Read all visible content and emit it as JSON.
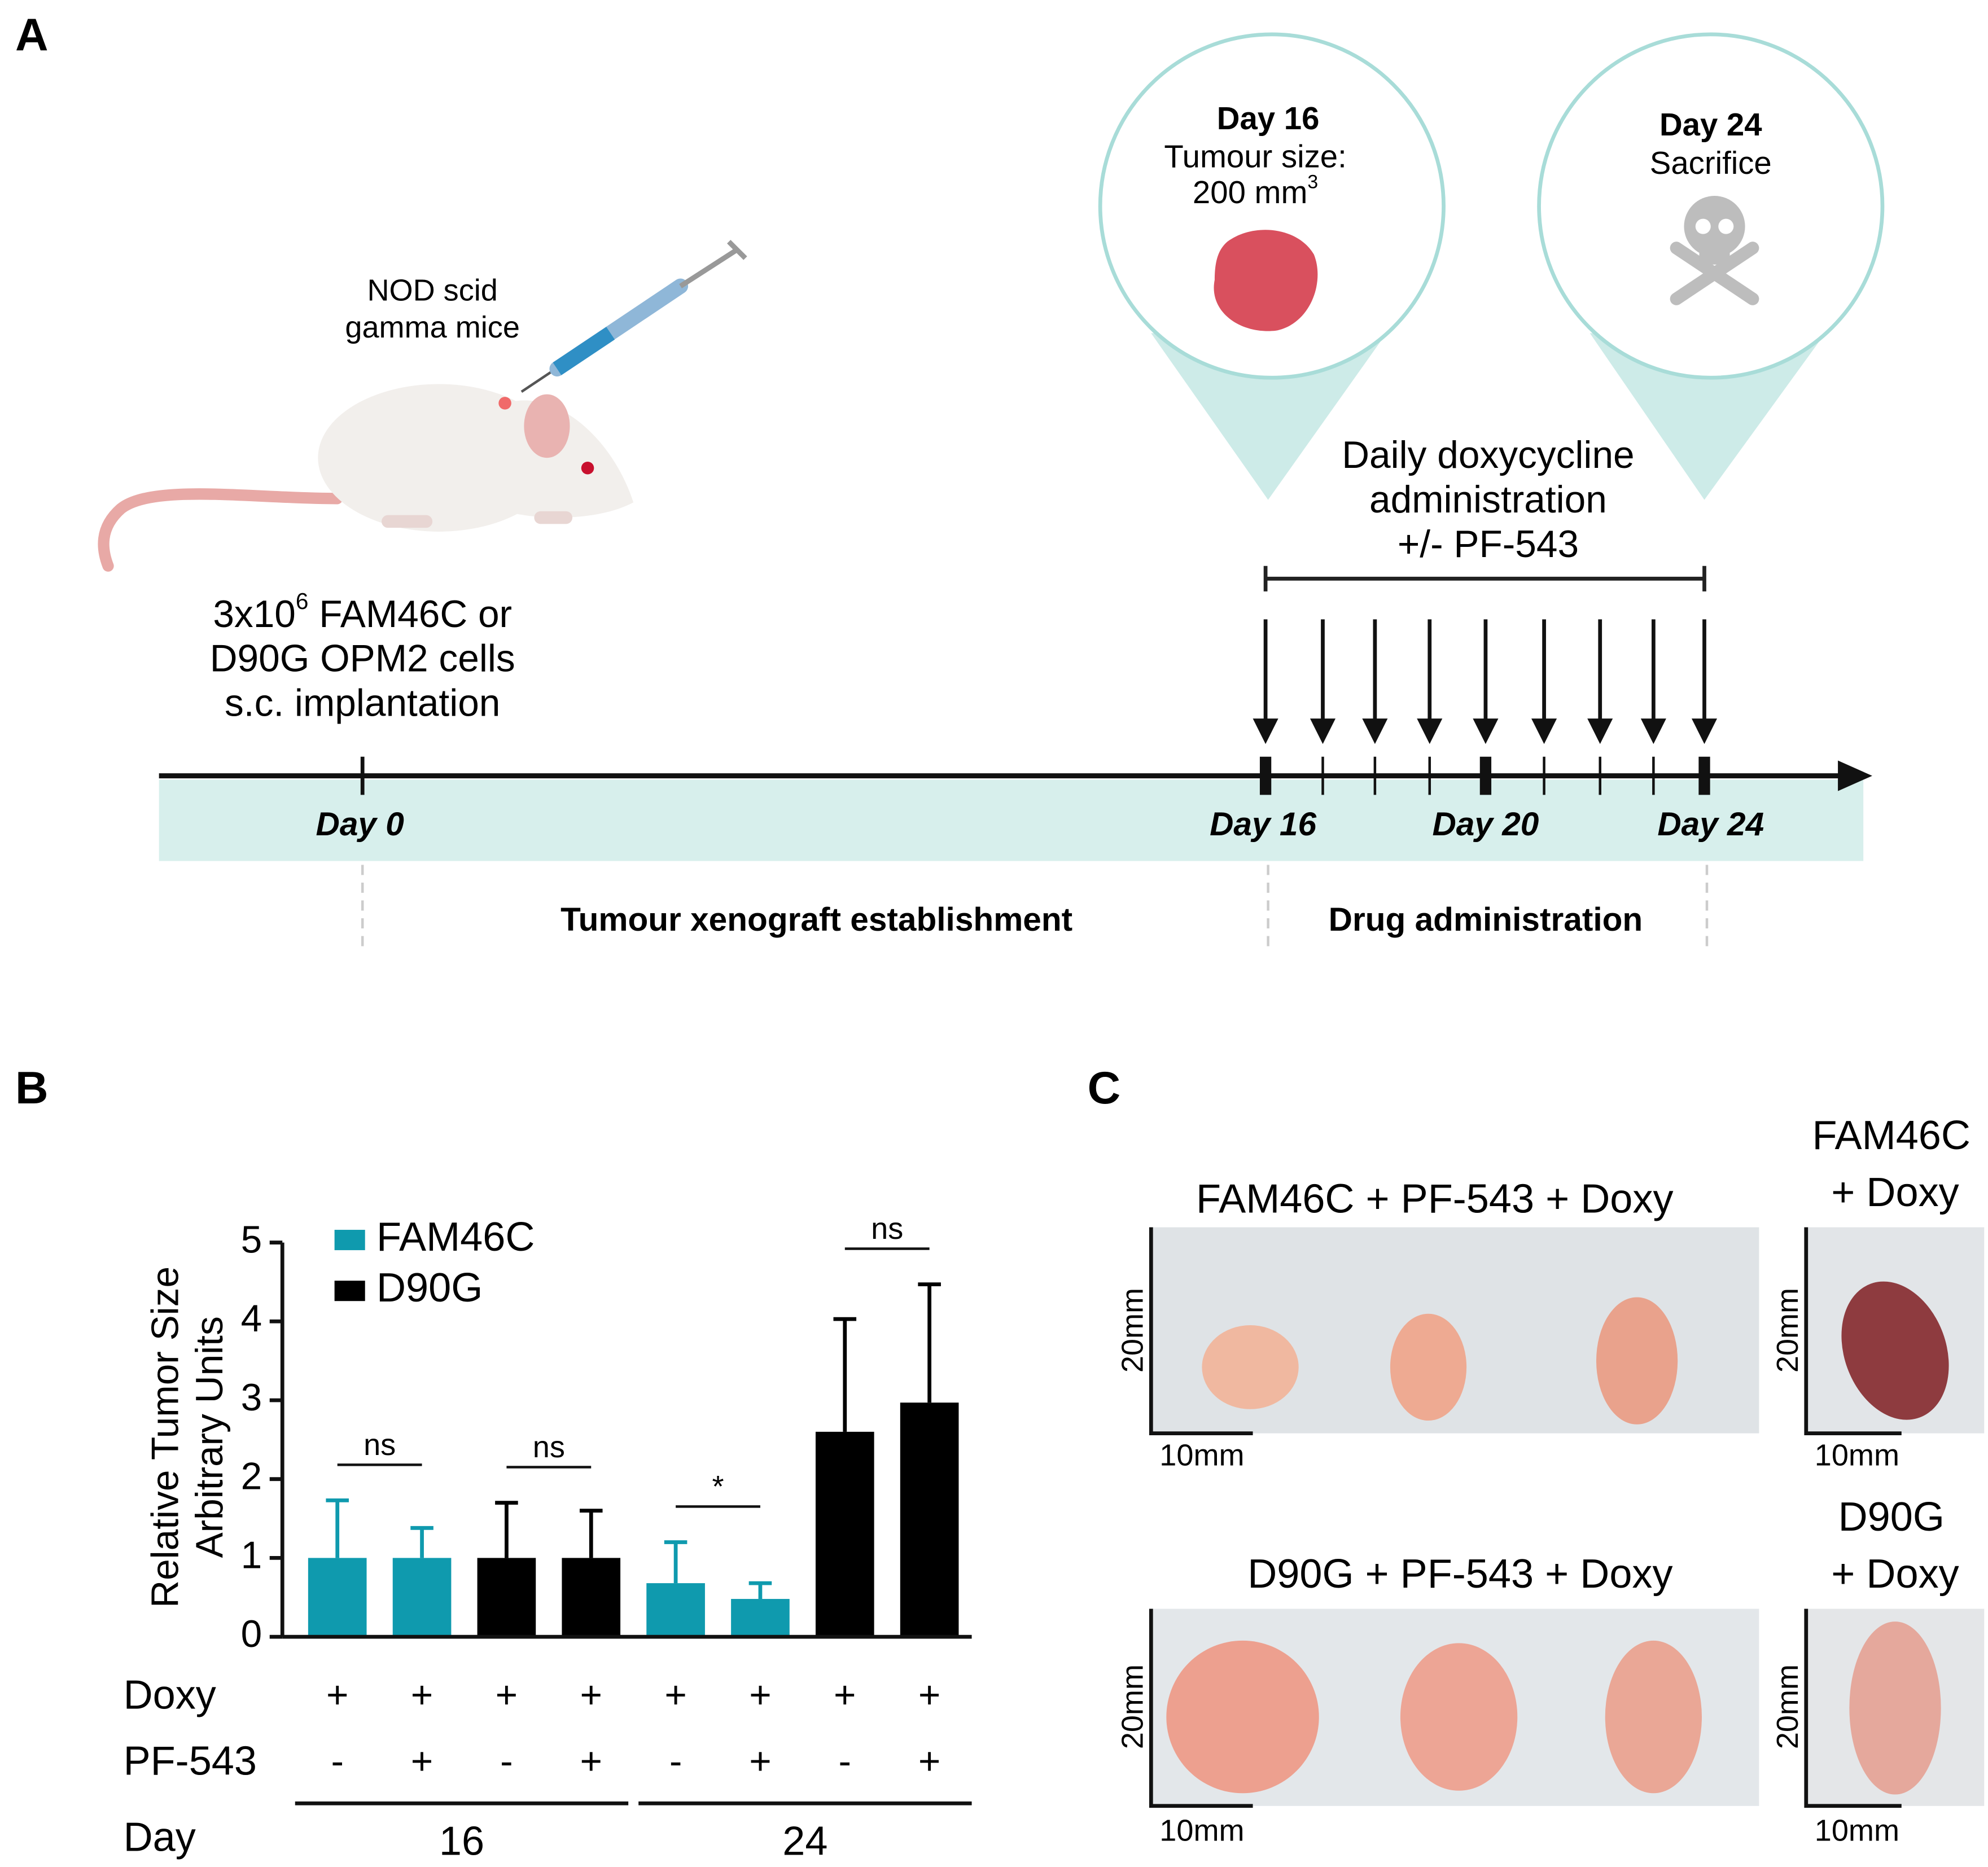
{
  "panel_a": {
    "label": "A",
    "mouse_label": [
      "NOD scid",
      "gamma mice"
    ],
    "implant": {
      "line1_a": "3x10",
      "line1_sup": "6",
      "line1_b": " FAM46C or",
      "line2": "D90G OPM2 cells",
      "line3": "s.c. implantation"
    },
    "bubble1": {
      "title": "Day 16",
      "line1": "Tumour size:",
      "line2": "200 mm",
      "line2_sup": "3"
    },
    "bubble2": {
      "title": "Day 24",
      "line1": "Sacrifice"
    },
    "treatment": [
      "Daily doxycycline",
      "administration",
      "+/-  PF-543"
    ],
    "days": [
      "Day 0",
      "Day 16",
      "Day 20",
      "Day 24"
    ],
    "phases": [
      "Tumour xenograft establishment",
      "Drug administration"
    ]
  },
  "chart_data": {
    "type": "bar",
    "label": "B",
    "ylabel": [
      "Relative Tumor Size",
      "Arbitrary Units"
    ],
    "series": [
      {
        "name": "FAM46C",
        "color": "#0f9aae",
        "values": [
          1,
          1,
          null,
          null,
          0.68,
          0.48,
          null,
          null
        ],
        "errors": [
          0.73,
          0.38,
          null,
          null,
          0.52,
          0.2,
          null,
          null
        ]
      },
      {
        "name": "D90G",
        "color": "#000000",
        "values": [
          null,
          null,
          1,
          1,
          null,
          null,
          2.6,
          2.97
        ],
        "errors": [
          null,
          null,
          0.7,
          0.6,
          null,
          null,
          1.43,
          1.5
        ]
      }
    ],
    "ylim": [
      0,
      5
    ],
    "yticks": [
      0,
      1,
      2,
      3,
      4,
      5
    ],
    "annotations": [
      "ns",
      "ns",
      "*",
      "ns"
    ],
    "row_labels": [
      "Doxy",
      "PF-543",
      "Day"
    ],
    "doxy": [
      "+",
      "+",
      "+",
      "+",
      "+",
      "+",
      "+",
      "+"
    ],
    "pf543": [
      "-",
      "+",
      "-",
      "+",
      "-",
      "+",
      "-",
      "+"
    ],
    "day_groups": [
      "16",
      "24"
    ]
  },
  "panel_c": {
    "label": "C",
    "titles": [
      "FAM46C + PF-543 + Doxy",
      "D90G + PF-543 + Doxy"
    ],
    "side_titles": [
      [
        "FAM46C",
        "+ Doxy"
      ],
      [
        "D90G",
        "+ Doxy"
      ]
    ],
    "scale_v": "20mm",
    "scale_h": "10mm"
  }
}
